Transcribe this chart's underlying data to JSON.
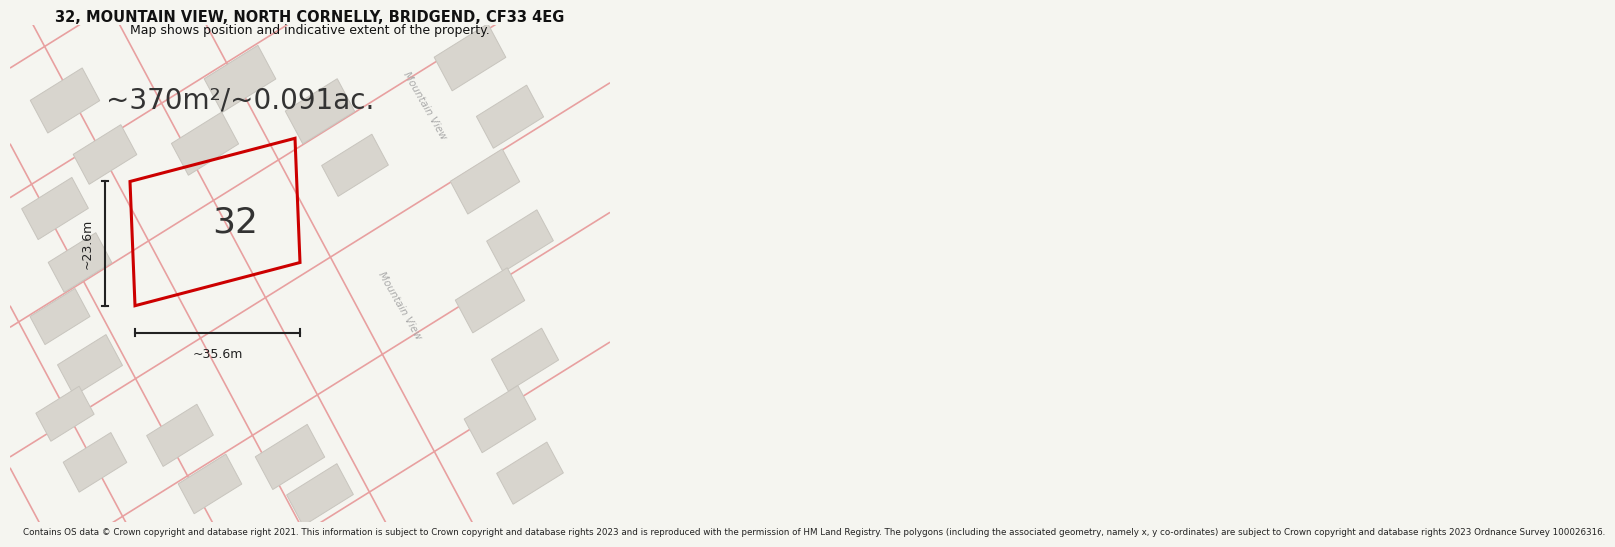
{
  "title_line1": "32, MOUNTAIN VIEW, NORTH CORNELLY, BRIDGEND, CF33 4EG",
  "title_line2": "Map shows position and indicative extent of the property.",
  "area_text": "~370m²/~0.091ac.",
  "property_label": "32",
  "dim1_label": "~23.6m",
  "dim2_label": "~35.6m",
  "street_label1": "Mountain View",
  "street_label2": "Mountain View",
  "footer_text": "Contains OS data © Crown copyright and database right 2021. This information is subject to Crown copyright and database rights 2023 and is reproduced with the permission of HM Land Registry. The polygons (including the associated geometry, namely x, y co-ordinates) are subject to Crown copyright and database rights 2023 Ordnance Survey 100026316.",
  "bg_color": "#f5f5f0",
  "map_bg": "#f0ede8",
  "building_fill": "#d8d5ce",
  "building_edge": "#c8c5be",
  "road_color": "#e8a0a0",
  "road_center_color": "#f5d0d0",
  "property_edge": "#cc0000",
  "dim_color": "#222222",
  "street_color": "#aaaaaa",
  "title_color": "#111111"
}
